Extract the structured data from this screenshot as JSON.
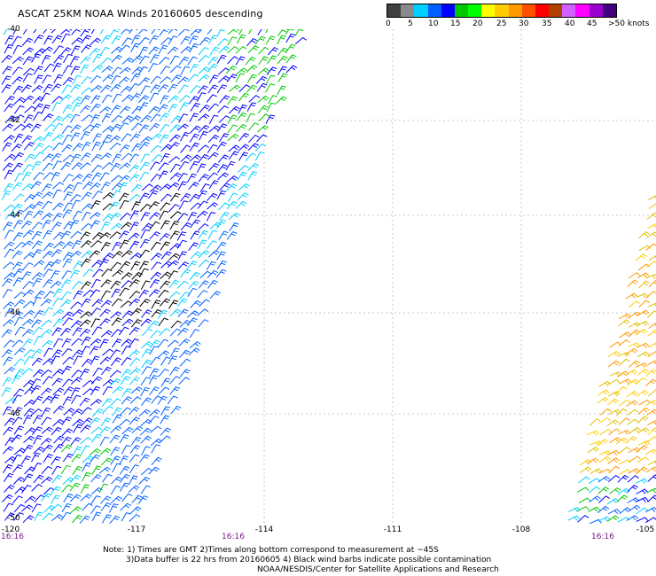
{
  "title": "ASCAT 25KM NOAA Winds 20160605 descending",
  "legend": {
    "labels": [
      "0",
      "5",
      "10",
      "15",
      "20",
      "25",
      "30",
      "35",
      "40",
      "45",
      ">50 knots"
    ],
    "colors": [
      "#404040",
      "#8a8a8a",
      "#00cfff",
      "#0060ff",
      "#0000ff",
      "#00c800",
      "#00ff00",
      "#ffff00",
      "#ffcc00",
      "#ff9900",
      "#ff5000",
      "#ff0000",
      "#b04000",
      "#d060ff",
      "#ff00ff",
      "#9900cc",
      "#400080"
    ]
  },
  "axes": {
    "lon_labels": [
      "-120",
      "-117",
      "-114",
      "-111",
      "-108",
      "-105"
    ],
    "lat_labels": [
      "-40",
      "-42",
      "-44",
      "-46",
      "-48",
      "-50"
    ],
    "times": [
      "16:16",
      "16:16",
      "16:16"
    ]
  },
  "notes": [
    "Note: 1) Times are GMT 2)Times along bottom correspond to measurement at ~45S",
    "3)Data buffer is 22 hrs from 20160605 4) Black wind barbs indicate possible contamination",
    "NOAA/NESDIS/Center for Satellite Applications and Research"
  ]
}
